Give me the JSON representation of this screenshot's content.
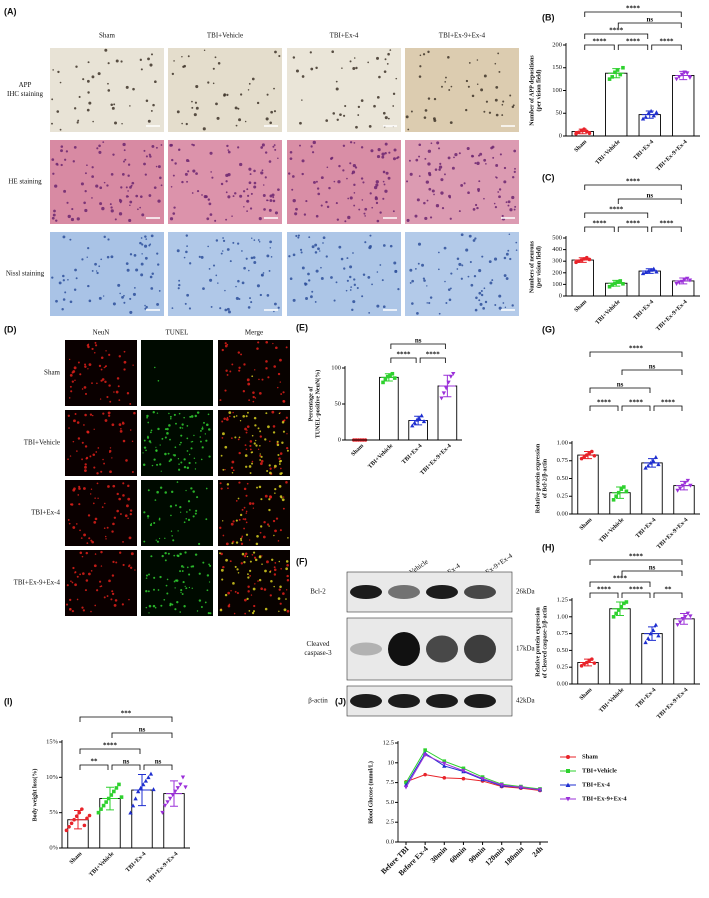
{
  "panel_a": {
    "label": "(A)",
    "columns": [
      "Sham",
      "TBI+Vehicle",
      "TBI+Ex-4",
      "TBI+Ex-9+Ex-4"
    ],
    "rows": [
      [
        "APP",
        "IHC staining"
      ],
      [
        "HE staining"
      ],
      [
        "Nissl staining"
      ]
    ]
  },
  "panel_d": {
    "label": "(D)",
    "columns": [
      "NeuN",
      "TUNEL",
      "Merge"
    ],
    "rows": [
      "Sham",
      "TBI+Vehicle",
      "TBI+Ex-4",
      "TBI+Ex-9+Ex-4"
    ]
  },
  "panel_f": {
    "label": "(F)",
    "lanes": [
      "Sham",
      "TBI+Vehicle",
      "TBI+Ex-4",
      "TBI+Ex-9+Ex-4"
    ],
    "bands": [
      {
        "name": [
          "Bcl-2"
        ],
        "size": "26kDa"
      },
      {
        "name": [
          "Cleaved",
          "caspase-3"
        ],
        "size": "17kDa"
      },
      {
        "name": [
          "β-actin"
        ],
        "size": "42kDa"
      }
    ]
  },
  "chart_data": [
    {
      "type": "bar",
      "title": "(B)",
      "ylabel": [
        "Number of APP depositions",
        "(per vision field)"
      ],
      "categories": [
        "Sham",
        "TBI+Vehicle",
        "TBI+Ex-4",
        "TBI+Ex-9+Ex-4"
      ],
      "colors": [
        "#e8232a",
        "#2ed12e",
        "#1f2fd0",
        "#9b30d9"
      ],
      "markers": [
        "circle",
        "square",
        "triangle",
        "triangle-down"
      ],
      "values": [
        10,
        138,
        47,
        133
      ],
      "errors": [
        5,
        10,
        8,
        9
      ],
      "points": [
        [
          5,
          8,
          12,
          15,
          10,
          6
        ],
        [
          125,
          130,
          140,
          145,
          135,
          150
        ],
        [
          38,
          42,
          50,
          55,
          45,
          52
        ],
        [
          125,
          130,
          135,
          140,
          138,
          128
        ]
      ],
      "ylim": [
        0,
        200
      ],
      "yticks": [
        0,
        50,
        100,
        150,
        200
      ],
      "comparisons": [
        {
          "pair": [
            0,
            3
          ],
          "label": "****"
        },
        {
          "pair": [
            1,
            3
          ],
          "label": "ns"
        },
        {
          "pair": [
            0,
            2
          ],
          "label": "****"
        },
        {
          "pair": [
            0,
            1
          ],
          "label": "****"
        },
        {
          "pair": [
            1,
            2
          ],
          "label": "****"
        },
        {
          "pair": [
            2,
            3
          ],
          "label": "****"
        }
      ]
    },
    {
      "type": "bar",
      "title": "(C)",
      "ylabel": [
        "Numbers of neurons",
        "(per vision field)"
      ],
      "categories": [
        "Sham",
        "TBI+Vehicle",
        "TBI+Ex-4",
        "TBI+Ex-9+Ex-4"
      ],
      "colors": [
        "#e8232a",
        "#2ed12e",
        "#1f2fd0",
        "#9b30d9"
      ],
      "markers": [
        "circle",
        "square",
        "triangle",
        "triangle-down"
      ],
      "values": [
        310,
        110,
        215,
        130
      ],
      "errors": [
        20,
        25,
        20,
        25
      ],
      "points": [
        [
          290,
          300,
          310,
          320,
          330,
          315
        ],
        [
          80,
          95,
          110,
          120,
          130,
          105
        ],
        [
          195,
          205,
          215,
          225,
          235,
          210
        ],
        [
          105,
          115,
          125,
          140,
          150,
          135
        ]
      ],
      "ylim": [
        0,
        500
      ],
      "yticks": [
        0,
        100,
        200,
        300,
        400,
        500
      ],
      "comparisons": [
        {
          "pair": [
            0,
            3
          ],
          "label": "****"
        },
        {
          "pair": [
            1,
            3
          ],
          "label": "ns"
        },
        {
          "pair": [
            0,
            2
          ],
          "label": "****"
        },
        {
          "pair": [
            0,
            1
          ],
          "label": "****"
        },
        {
          "pair": [
            1,
            2
          ],
          "label": "****"
        },
        {
          "pair": [
            2,
            3
          ],
          "label": "****"
        }
      ]
    },
    {
      "type": "bar",
      "title": "(E)",
      "ylabel": [
        "Percentage of",
        "TUNEL-positive NeuN(%)"
      ],
      "categories": [
        "Sham",
        "TBI+Vehicle",
        "TBI+Ex-4",
        "TBI+Ex-9+Ex-4"
      ],
      "colors": [
        "#e8232a",
        "#2ed12e",
        "#1f2fd0",
        "#9b30d9"
      ],
      "markers": [
        "circle",
        "square",
        "triangle",
        "triangle-down"
      ],
      "values": [
        0,
        87,
        27,
        75
      ],
      "errors": [
        0,
        5,
        6,
        15
      ],
      "points": [
        [
          0,
          0,
          0,
          0,
          0,
          0
        ],
        [
          80,
          84,
          88,
          90,
          92,
          86
        ],
        [
          20,
          24,
          28,
          30,
          34,
          26
        ],
        [
          58,
          65,
          72,
          80,
          88,
          92
        ]
      ],
      "ylim": [
        0,
        100
      ],
      "yticks": [
        0,
        50,
        100
      ],
      "comparisons": [
        {
          "pair": [
            1,
            3
          ],
          "label": "ns"
        },
        {
          "pair": [
            1,
            2
          ],
          "label": "****"
        },
        {
          "pair": [
            2,
            3
          ],
          "label": "****"
        }
      ]
    },
    {
      "type": "bar",
      "title": "(G)",
      "ylabel": [
        "Relative protein expression",
        "of Bcl-2/β-actin"
      ],
      "categories": [
        "Sham",
        "TBI+Vehicle",
        "TBI+Ex-4",
        "TBI+Ex-9+Ex-4"
      ],
      "colors": [
        "#e8232a",
        "#2ed12e",
        "#1f2fd0",
        "#9b30d9"
      ],
      "markers": [
        "circle",
        "square",
        "triangle",
        "triangle-down"
      ],
      "values": [
        0.83,
        0.3,
        0.72,
        0.4
      ],
      "errors": [
        0.05,
        0.08,
        0.06,
        0.06
      ],
      "points": [
        [
          0.78,
          0.8,
          0.83,
          0.86,
          0.88,
          0.82
        ],
        [
          0.2,
          0.25,
          0.3,
          0.35,
          0.38,
          0.32
        ],
        [
          0.65,
          0.68,
          0.72,
          0.75,
          0.8,
          0.7
        ],
        [
          0.33,
          0.36,
          0.4,
          0.44,
          0.47,
          0.4
        ]
      ],
      "ylim": [
        0,
        1
      ],
      "yticks": [
        {
          "value": 0,
          "label": "0.00"
        },
        {
          "value": 0.25,
          "label": "0.25"
        },
        {
          "value": 0.5,
          "label": "0.50"
        },
        {
          "value": 0.75,
          "label": "0.75"
        },
        {
          "value": 1,
          "label": "1.00"
        }
      ],
      "comparisons": [
        {
          "pair": [
            0,
            3
          ],
          "label": "****"
        },
        {
          "pair": [
            1,
            3
          ],
          "label": "ns"
        },
        {
          "pair": [
            0,
            2
          ],
          "label": "ns"
        },
        {
          "pair": [
            0,
            1
          ],
          "label": "****"
        },
        {
          "pair": [
            1,
            2
          ],
          "label": "****"
        },
        {
          "pair": [
            2,
            3
          ],
          "label": "****"
        }
      ]
    },
    {
      "type": "bar",
      "title": "(H)",
      "ylabel": [
        "Relative protein expression",
        "of Cleaved caspase-3/β-actin"
      ],
      "categories": [
        "Sham",
        "TBI+Vehicle",
        "TBI+Ex-4",
        "TBI+Ex-9+Ex-4"
      ],
      "colors": [
        "#e8232a",
        "#2ed12e",
        "#1f2fd0",
        "#9b30d9"
      ],
      "markers": [
        "circle",
        "square",
        "triangle",
        "triangle-down"
      ],
      "values": [
        0.32,
        1.12,
        0.75,
        0.97
      ],
      "errors": [
        0.05,
        0.1,
        0.1,
        0.08
      ],
      "points": [
        [
          0.27,
          0.3,
          0.32,
          0.35,
          0.37,
          0.31
        ],
        [
          1.0,
          1.05,
          1.1,
          1.15,
          1.2,
          1.22
        ],
        [
          0.62,
          0.68,
          0.75,
          0.8,
          0.88,
          0.72
        ],
        [
          0.88,
          0.92,
          0.97,
          1.0,
          1.05,
          1.01
        ]
      ],
      "ylim": [
        0,
        1.25
      ],
      "yticks": [
        {
          "value": 0,
          "label": "0.00"
        },
        {
          "value": 0.25,
          "label": "0.25"
        },
        {
          "value": 0.5,
          "label": "0.50"
        },
        {
          "value": 0.75,
          "label": "0.75"
        },
        {
          "value": 1,
          "label": "1.00"
        },
        {
          "value": 1.25,
          "label": "1.25"
        }
      ],
      "comparisons": [
        {
          "pair": [
            0,
            3
          ],
          "label": "****"
        },
        {
          "pair": [
            1,
            3
          ],
          "label": "ns"
        },
        {
          "pair": [
            0,
            2
          ],
          "label": "****"
        },
        {
          "pair": [
            0,
            1
          ],
          "label": "****"
        },
        {
          "pair": [
            1,
            2
          ],
          "label": "****"
        },
        {
          "pair": [
            2,
            3
          ],
          "label": "**"
        }
      ]
    },
    {
      "type": "bar",
      "title": "(I)",
      "ylabel": [
        "Body weight loss(%)"
      ],
      "categories": [
        "Sham",
        "TBI+Vehicle",
        "TBI+Ex-4",
        "TBI+Ex-9+Ex-4"
      ],
      "colors": [
        "#e8232a",
        "#2ed12e",
        "#1f2fd0",
        "#9b30d9"
      ],
      "markers": [
        "circle",
        "square",
        "triangle",
        "triangle-down"
      ],
      "values": [
        4,
        7,
        8.2,
        7.7
      ],
      "errors": [
        1.3,
        1.6,
        2.2,
        1.8
      ],
      "points": [
        [
          2.5,
          3,
          3.5,
          4,
          4.5,
          5,
          5.5,
          3.2,
          4.2,
          4.6
        ],
        [
          5,
          5.5,
          6,
          6.5,
          7,
          7.5,
          8,
          8.5,
          9,
          7.2
        ],
        [
          5,
          6,
          7,
          8,
          8.5,
          9,
          9.5,
          10,
          10.5,
          8.3
        ],
        [
          5,
          6,
          6.5,
          7,
          7.5,
          8,
          8.5,
          9,
          10,
          8.6
        ]
      ],
      "ylim": [
        0,
        15
      ],
      "yticks": [
        {
          "value": 0,
          "label": "0%"
        },
        {
          "value": 5,
          "label": "5%"
        },
        {
          "value": 10,
          "label": "10%"
        },
        {
          "value": 15,
          "label": "15%"
        }
      ],
      "comparisons": [
        {
          "pair": [
            0,
            3
          ],
          "label": "***"
        },
        {
          "pair": [
            1,
            3
          ],
          "label": "ns"
        },
        {
          "pair": [
            0,
            2
          ],
          "label": "****"
        },
        {
          "pair": [
            0,
            1
          ],
          "label": "**"
        },
        {
          "pair": [
            1,
            2
          ],
          "label": "ns"
        },
        {
          "pair": [
            2,
            3
          ],
          "label": "ns"
        }
      ]
    },
    {
      "type": "line",
      "title": "(J)",
      "ylabel": [
        "Blood Glucose (mmol/L)"
      ],
      "categories": [
        "Before TBI",
        "Before Ex-4",
        "30min",
        "60min",
        "90min",
        "120min",
        "180min",
        "24h"
      ],
      "ylim": [
        0,
        12.5
      ],
      "yticks": [
        {
          "value": 0,
          "label": "0.0"
        },
        2.5,
        {
          "value": 5,
          "label": "5.0"
        },
        7.5,
        10,
        12.5
      ],
      "series": [
        {
          "name": "Sham",
          "color": "#e8232a",
          "marker": "circle",
          "values": [
            7.6,
            8.5,
            8.1,
            8.0,
            7.7,
            7.0,
            6.8,
            6.5
          ]
        },
        {
          "name": "TBI+Vehicle",
          "color": "#2ed12e",
          "marker": "square",
          "values": [
            7.5,
            11.6,
            10.2,
            9.3,
            8.2,
            7.3,
            7.0,
            6.7
          ]
        },
        {
          "name": "TBI+Ex-4",
          "color": "#1f2fd0",
          "marker": "triangle",
          "values": [
            7.2,
            11.2,
            9.6,
            8.9,
            7.9,
            7.1,
            6.9,
            6.6
          ]
        },
        {
          "name": "TBI+Ex-9+Ex-4",
          "color": "#9b30d9",
          "marker": "triangle-down",
          "values": [
            6.9,
            11.0,
            9.9,
            9.0,
            8.0,
            7.2,
            6.9,
            6.6
          ]
        }
      ]
    }
  ]
}
